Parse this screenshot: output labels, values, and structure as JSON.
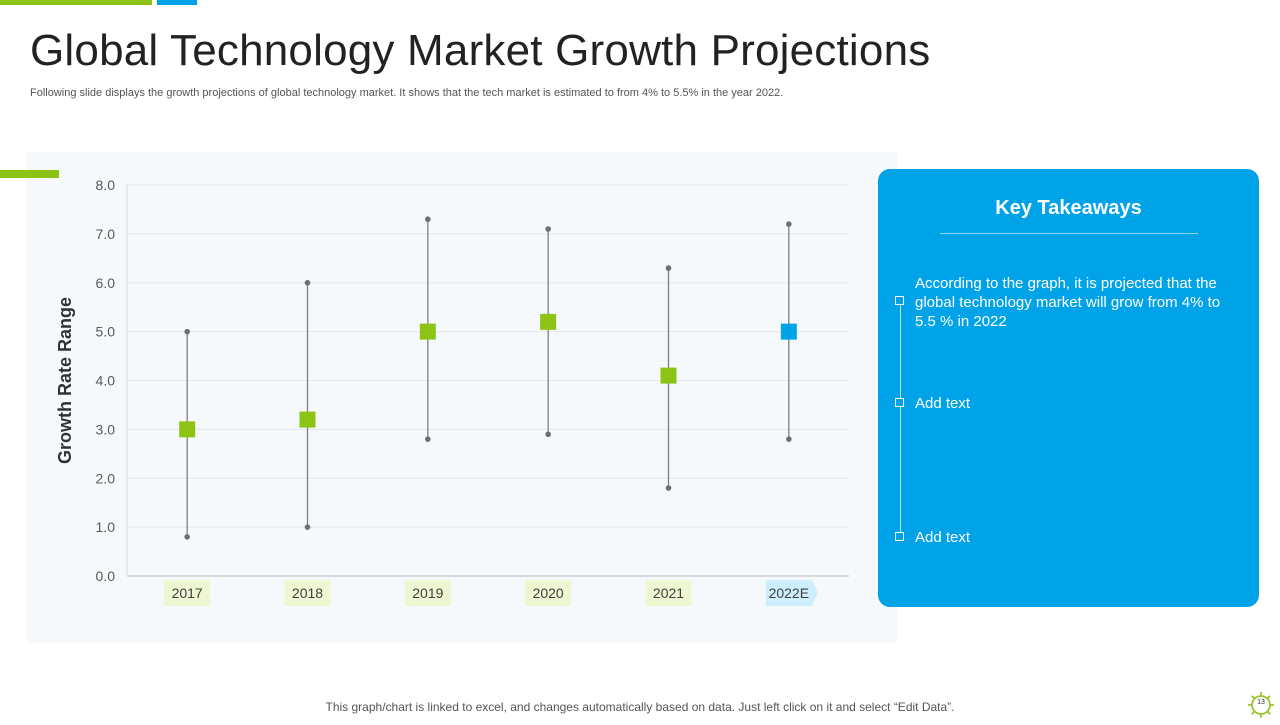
{
  "slide": {
    "title": "Global Technology Market Growth Projections",
    "subtitle": "Following slide displays the growth projections of global technology market. It shows that the tech market is estimated to from 4% to 5.5% in the year 2022.",
    "footer_note": "This graph/chart is linked to excel, and changes automatically based on data. Just left click on it and select “Edit Data”.",
    "page_number": "13"
  },
  "colors": {
    "accent_green": "#8dc314",
    "accent_blue": "#00a3e8",
    "category_green_bg": "#eef7d2",
    "category_blue_bg": "#cdeefc"
  },
  "takeaways": {
    "title": "Key Takeaways",
    "items": [
      "According to the graph, it is projected that the global technology  market will grow from 4% to 5.5 % in 2022",
      "Add text",
      "Add text"
    ]
  },
  "chart_data": {
    "type": "scatter",
    "subtype": "high-low-value",
    "title": "",
    "xlabel": "",
    "ylabel": "Growth Rate Range",
    "ylim": [
      0,
      8
    ],
    "yticks": [
      "0.0",
      "1.0",
      "2.0",
      "3.0",
      "4.0",
      "5.0",
      "6.0",
      "7.0",
      "8.0"
    ],
    "grid": true,
    "categories": [
      "2017",
      "2018",
      "2019",
      "2020",
      "2021",
      "2022E"
    ],
    "series": [
      {
        "name": "High",
        "values": [
          5.0,
          6.0,
          7.3,
          7.1,
          6.3,
          7.2
        ]
      },
      {
        "name": "Low",
        "values": [
          0.8,
          1.0,
          2.8,
          2.9,
          1.8,
          2.8
        ]
      },
      {
        "name": "Value",
        "values": [
          3.0,
          3.2,
          5.0,
          5.2,
          4.1,
          5.0
        ]
      }
    ],
    "highlight_category": "2022E"
  }
}
